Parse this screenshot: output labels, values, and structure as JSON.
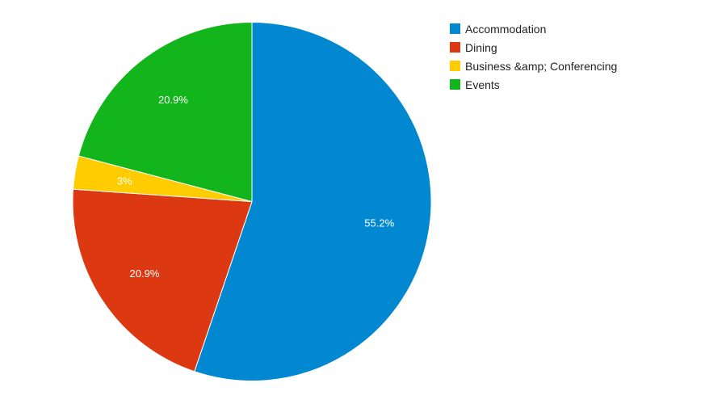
{
  "chart_data": {
    "type": "pie",
    "categories": [
      "Accommodation",
      "Dining",
      "Business &amp; Conferencing",
      "Events"
    ],
    "values": [
      55.2,
      20.9,
      3.0,
      20.9
    ],
    "data_labels": [
      "55.2%",
      "20.9%",
      "3%",
      "20.9%"
    ],
    "colors": [
      "#0288d1",
      "#dc3912",
      "#ffcc00",
      "#12b51c"
    ],
    "legend_position": "top-right",
    "start": "12 o'clock",
    "direction": "clockwise"
  }
}
